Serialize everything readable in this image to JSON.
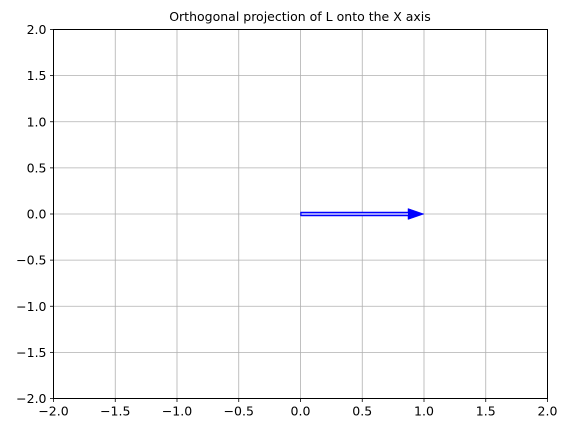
{
  "chart_data": {
    "type": "quiver",
    "title": "Orthogonal projection of L onto the X axis",
    "xlabel": "",
    "ylabel": "",
    "xlim": [
      -2.0,
      2.0
    ],
    "ylim": [
      -2.0,
      2.0
    ],
    "xticks": [
      -2.0,
      -1.5,
      -1.0,
      -0.5,
      0.0,
      0.5,
      1.0,
      1.5,
      2.0
    ],
    "yticks": [
      -2.0,
      -1.5,
      -1.0,
      -0.5,
      0.0,
      0.5,
      1.0,
      1.5,
      2.0
    ],
    "xtick_labels": [
      "−2.0",
      "−1.5",
      "−1.0",
      "−0.5",
      "0.0",
      "0.5",
      "1.0",
      "1.5",
      "2.0"
    ],
    "ytick_labels": [
      "−2.0",
      "−1.5",
      "−1.0",
      "−0.5",
      "0.0",
      "0.5",
      "1.0",
      "1.5",
      "2.0"
    ],
    "grid": true,
    "vectors": [
      {
        "x0": 0.0,
        "y0": 0.0,
        "dx": 1.0,
        "dy": 0.0,
        "color": "#0000ff"
      }
    ]
  }
}
